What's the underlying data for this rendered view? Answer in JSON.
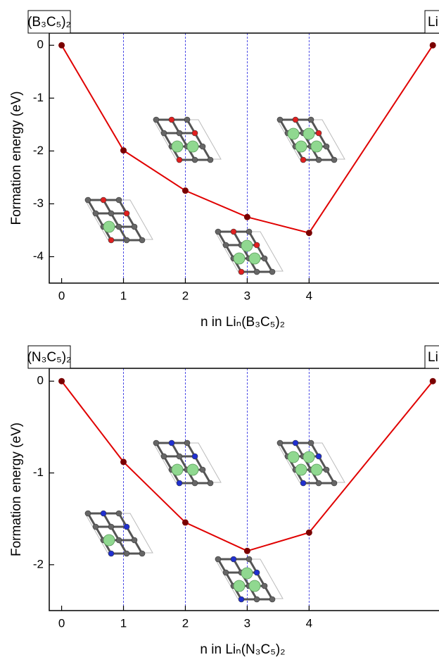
{
  "chart_data": [
    {
      "type": "line",
      "corner_left": "(B₃C₅)₂",
      "corner_right": "Li",
      "ylabel": "Formation energy (eV)",
      "xlabel": "n in Liₙ(B₃C₅)₂",
      "x": [
        0,
        1,
        2,
        3,
        4,
        6
      ],
      "values": [
        0,
        -1.99,
        -2.75,
        -3.25,
        -3.55,
        0
      ],
      "line_color": "#e00000",
      "marker_color": "#7a0000",
      "xlim": [
        -0.2,
        6.1
      ],
      "ylim": [
        -4.5,
        0.23
      ],
      "xticks": [
        0,
        1,
        2,
        3,
        4
      ],
      "yticks": [
        0,
        -1,
        -2,
        -3,
        -4
      ],
      "vlines": [
        1,
        2,
        3,
        4
      ],
      "vline_color": "#2020e0"
    },
    {
      "type": "line",
      "corner_left": "(N₃C₅)₂",
      "corner_right": "Li",
      "ylabel": "Formation energy (eV)",
      "xlabel": "n in Liₙ(N₃C₅)₂",
      "x": [
        0,
        1,
        2,
        3,
        4,
        6
      ],
      "values": [
        0,
        -0.88,
        -1.54,
        -1.85,
        -1.65,
        0
      ],
      "line_color": "#e00000",
      "marker_color": "#7a0000",
      "xlim": [
        -0.2,
        6.1
      ],
      "ylim": [
        -2.5,
        0.14
      ],
      "xticks": [
        0,
        1,
        2,
        3,
        4
      ],
      "yticks": [
        0,
        -1,
        -2
      ],
      "vlines": [
        1,
        2,
        3,
        4
      ],
      "vline_color": "#2020e0"
    }
  ]
}
